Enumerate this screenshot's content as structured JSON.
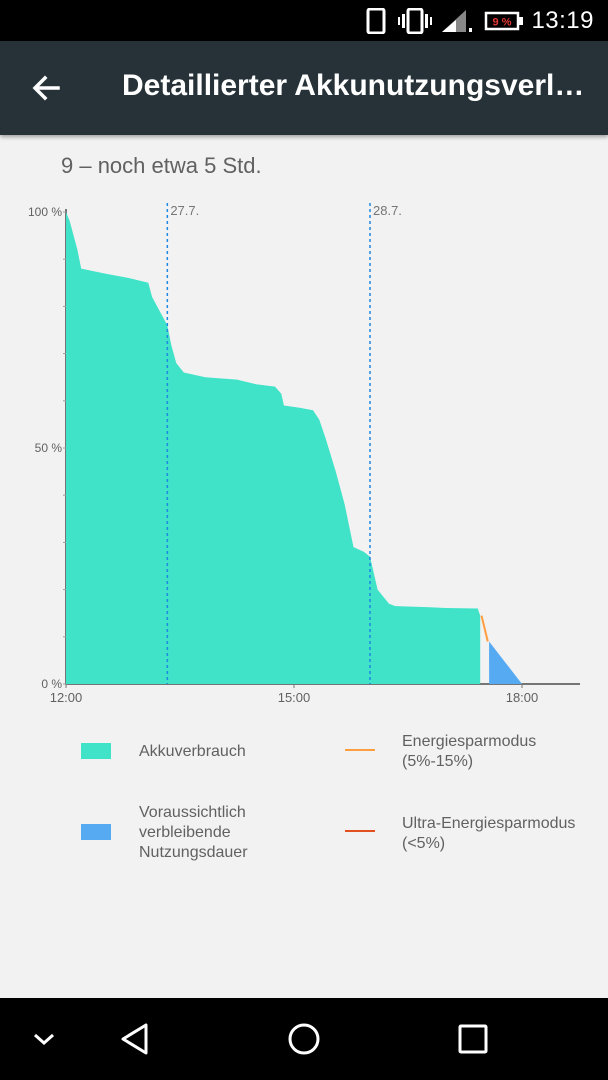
{
  "status_bar": {
    "time": "13:19",
    "battery_percent": "9 %",
    "icons": [
      "phone-outline-icon",
      "vibrate-icon",
      "signal-icon",
      "battery-icon"
    ]
  },
  "app_bar": {
    "back_icon": "arrow-back-icon",
    "title": "Detaillierter Akkunutzungsverlauf"
  },
  "summary": "9 – noch etwa 5 Std.",
  "chart_data": {
    "type": "area",
    "y_ticks": [
      "100 %",
      "50 %",
      "0 %"
    ],
    "x_ticks": [
      "12:00",
      "15:00",
      "18:00"
    ],
    "date_markers": [
      {
        "label": "27.7.",
        "time": "13:20"
      },
      {
        "label": "28.7.",
        "time": "16:00"
      }
    ],
    "ylim": [
      0,
      100
    ],
    "xlim": [
      "12:00",
      "18:45"
    ],
    "series": [
      {
        "name": "Akkuverbrauch",
        "color": "#40e2c8",
        "points": [
          [
            "12:00",
            100
          ],
          [
            "12:03",
            98
          ],
          [
            "12:06",
            95
          ],
          [
            "12:09",
            92
          ],
          [
            "12:12",
            88
          ],
          [
            "12:30",
            87
          ],
          [
            "12:50",
            86
          ],
          [
            "13:05",
            85
          ],
          [
            "13:08",
            82
          ],
          [
            "13:14",
            79
          ],
          [
            "13:20",
            76
          ],
          [
            "13:23",
            72
          ],
          [
            "13:27",
            68
          ],
          [
            "13:33",
            66
          ],
          [
            "13:50",
            65
          ],
          [
            "14:15",
            64.5
          ],
          [
            "14:30",
            63.5
          ],
          [
            "14:45",
            63
          ],
          [
            "14:50",
            61.5
          ],
          [
            "14:52",
            59
          ],
          [
            "15:05",
            58.5
          ],
          [
            "15:15",
            58
          ],
          [
            "15:20",
            56
          ],
          [
            "15:25",
            52
          ],
          [
            "15:33",
            45
          ],
          [
            "15:40",
            38
          ],
          [
            "15:47",
            29
          ],
          [
            "15:55",
            28
          ],
          [
            "16:00",
            27
          ],
          [
            "16:06",
            20
          ],
          [
            "16:15",
            17
          ],
          [
            "16:20",
            16.5
          ],
          [
            "16:45",
            16.3
          ],
          [
            "17:00",
            16.1
          ],
          [
            "17:25",
            16
          ],
          [
            "17:27",
            14.5
          ]
        ]
      },
      {
        "name": "Voraussichtlich verbleibende Nutzungsdauer",
        "color": "#56aaf2",
        "points": [
          [
            "17:34",
            9
          ],
          [
            "18:00",
            0
          ]
        ]
      },
      {
        "name": "Energiesparmodus (5%-15%)",
        "color": "#ff9e40",
        "points": [
          [
            "17:28",
            14.5
          ],
          [
            "17:33",
            9
          ]
        ]
      }
    ]
  },
  "legend": [
    {
      "label": "Akkuverbrauch",
      "color": "#40e2c8",
      "kind": "block"
    },
    {
      "label": "Energiesparmodus (5%-15%)",
      "color": "#ff9e40",
      "kind": "line"
    },
    {
      "label": "Voraussichtlich verbleibende Nutzungsdauer",
      "color": "#56aaf2",
      "kind": "block"
    },
    {
      "label": "Ultra-Energiesparmodus (<5%)",
      "color": "#e2501f",
      "kind": "line"
    }
  ],
  "nav_bar": {
    "icons": [
      "hide-keyboard-icon",
      "back-triangle-icon",
      "home-circle-icon",
      "recents-square-icon"
    ]
  }
}
